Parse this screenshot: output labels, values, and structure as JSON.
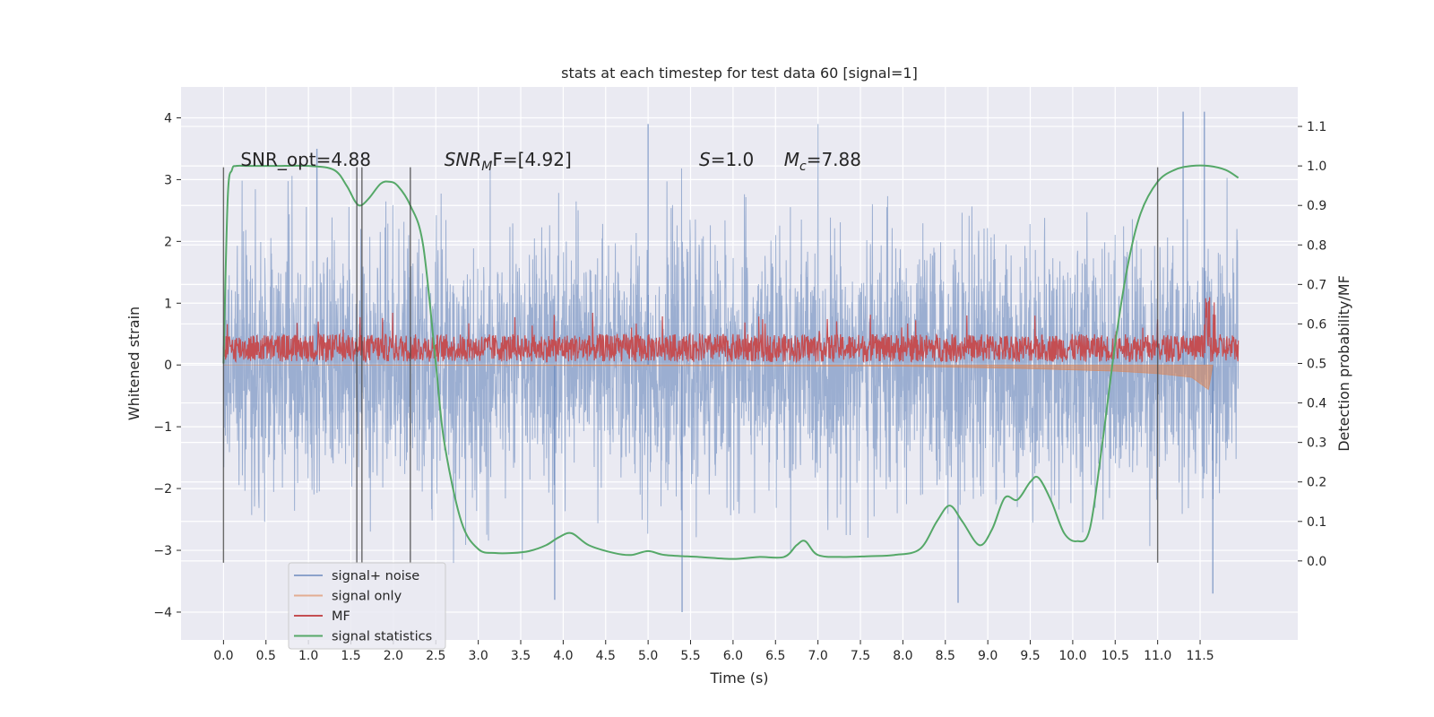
{
  "chart_data": {
    "type": "line",
    "title": "stats at each timestep for test data 60 [signal=1]",
    "xlabel": "Time (s)",
    "ylabel": "Whitened strain",
    "ylabel_right": "Detection probability/MF",
    "xlim": [
      -0.5,
      12.65
    ],
    "ylim": [
      -4.45,
      4.5
    ],
    "ylim_right": [
      -0.2,
      1.2
    ],
    "x_ticks": [
      0.0,
      0.5,
      1.0,
      1.5,
      2.0,
      2.5,
      3.0,
      3.5,
      4.0,
      4.5,
      5.0,
      5.5,
      6.0,
      6.5,
      7.0,
      7.5,
      8.0,
      8.5,
      9.0,
      9.5,
      10.0,
      10.5,
      11.0,
      11.5
    ],
    "x_tick_labels": [
      "0.0",
      "0.5",
      "1.0",
      "1.5",
      "2.0",
      "2.5",
      "3.0",
      "3.5",
      "4.0",
      "4.5",
      "5.0",
      "5.5",
      "6.0",
      "6.5",
      "7.0",
      "7.5",
      "8.0",
      "8.5",
      "9.0",
      "9.5",
      "10.0",
      "10.5",
      "11.0",
      "11.5"
    ],
    "y_ticks": [
      4,
      3,
      2,
      1,
      0,
      -1,
      -2,
      -3,
      -4
    ],
    "y_tick_labels": [
      "4",
      "3",
      "2",
      "1",
      "0",
      "−1",
      "−2",
      "−3",
      "−4"
    ],
    "y_right_ticks": [
      1.1,
      1.0,
      0.9,
      0.8,
      0.7,
      0.6,
      0.5,
      0.4,
      0.3,
      0.2,
      0.1,
      0.0
    ],
    "y_right_tick_labels": [
      "1.1",
      "1.0",
      "0.9",
      "0.8",
      "0.7",
      "0.6",
      "0.5",
      "0.4",
      "0.3",
      "0.2",
      "0.1",
      "0.0"
    ],
    "grid": true,
    "legend_position": "lower-left",
    "annotations": [
      {
        "text": "SNR_opt=4.88",
        "x": 0.2,
        "y": 3.22
      },
      {
        "text_main": "SNR",
        "text_sub": "M",
        "text_rest": "F=[4.92]",
        "x": 2.6,
        "y": 3.22
      },
      {
        "text_main": "S",
        "text_rest": "=1.0",
        "x": 5.6,
        "y": 3.22
      },
      {
        "text_main": "M",
        "text_sub": "c",
        "text_rest": "=7.88",
        "x": 6.6,
        "y": 3.22
      }
    ],
    "vertical_lines_x": [
      0.0,
      1.57,
      1.63,
      2.2,
      11.0
    ],
    "vertical_lines_yrange": [
      -3.2,
      3.2
    ],
    "series": [
      {
        "name": "signal+ noise",
        "color": "#4c72b0",
        "style": "noise band",
        "x_range": [
          0.0,
          11.95
        ],
        "envelope_typical": [
          -2.0,
          2.0
        ],
        "envelope_extremes": [
          -4.0,
          4.1
        ],
        "example_peaks": [
          {
            "x": 1.1,
            "y": 3.5
          },
          {
            "x": 5.0,
            "y": 3.9
          },
          {
            "x": 5.4,
            "y": -4.0
          },
          {
            "x": 3.9,
            "y": -3.8
          },
          {
            "x": 11.3,
            "y": 4.1
          },
          {
            "x": 11.55,
            "y": 4.1
          },
          {
            "x": 8.65,
            "y": -3.85
          },
          {
            "x": 11.65,
            "y": -3.7
          }
        ]
      },
      {
        "name": "signal only",
        "color": "#dd8452",
        "style": "chirp",
        "x_range": [
          0.0,
          11.65
        ],
        "amplitude_points": [
          [
            0.0,
            0.0
          ],
          [
            8.0,
            0.02
          ],
          [
            9.5,
            0.06
          ],
          [
            10.5,
            0.1
          ],
          [
            11.0,
            0.14
          ],
          [
            11.4,
            0.2
          ],
          [
            11.6,
            0.4
          ],
          [
            11.65,
            0.0
          ]
        ]
      },
      {
        "name": "MF",
        "color": "#c44e52",
        "style": "band",
        "x_range": [
          0.0,
          11.95
        ],
        "band_typical": [
          0.05,
          0.5
        ],
        "band_max": 0.85
      },
      {
        "name": "signal statistics",
        "color": "#55a868",
        "axis": "right",
        "x": [
          0.0,
          0.05,
          0.1,
          0.15,
          0.3,
          0.6,
          1.0,
          1.3,
          1.45,
          1.55,
          1.62,
          1.72,
          1.85,
          1.95,
          2.05,
          2.2,
          2.35,
          2.5,
          2.6,
          2.8,
          3.0,
          3.2,
          3.4,
          3.6,
          3.8,
          3.95,
          4.1,
          4.3,
          4.6,
          4.8,
          5.0,
          5.2,
          5.6,
          6.0,
          6.3,
          6.6,
          6.75,
          6.85,
          7.0,
          7.3,
          7.6,
          7.9,
          8.2,
          8.4,
          8.55,
          8.7,
          8.9,
          9.05,
          9.2,
          9.35,
          9.5,
          9.6,
          9.75,
          9.9,
          10.05,
          10.2,
          10.35,
          10.5,
          10.65,
          10.8,
          11.0,
          11.2,
          11.4,
          11.6,
          11.8,
          11.95
        ],
        "y": [
          0.5,
          0.92,
          0.99,
          1.0,
          1.0,
          1.0,
          1.0,
          0.99,
          0.95,
          0.91,
          0.9,
          0.92,
          0.955,
          0.96,
          0.95,
          0.9,
          0.8,
          0.5,
          0.3,
          0.1,
          0.03,
          0.02,
          0.02,
          0.025,
          0.04,
          0.06,
          0.07,
          0.04,
          0.02,
          0.015,
          0.025,
          0.015,
          0.01,
          0.005,
          0.01,
          0.01,
          0.04,
          0.05,
          0.015,
          0.01,
          0.012,
          0.015,
          0.03,
          0.1,
          0.14,
          0.1,
          0.04,
          0.08,
          0.16,
          0.155,
          0.2,
          0.21,
          0.15,
          0.07,
          0.05,
          0.08,
          0.3,
          0.55,
          0.75,
          0.88,
          0.96,
          0.99,
          1.0,
          1.0,
          0.99,
          0.97
        ]
      }
    ]
  }
}
